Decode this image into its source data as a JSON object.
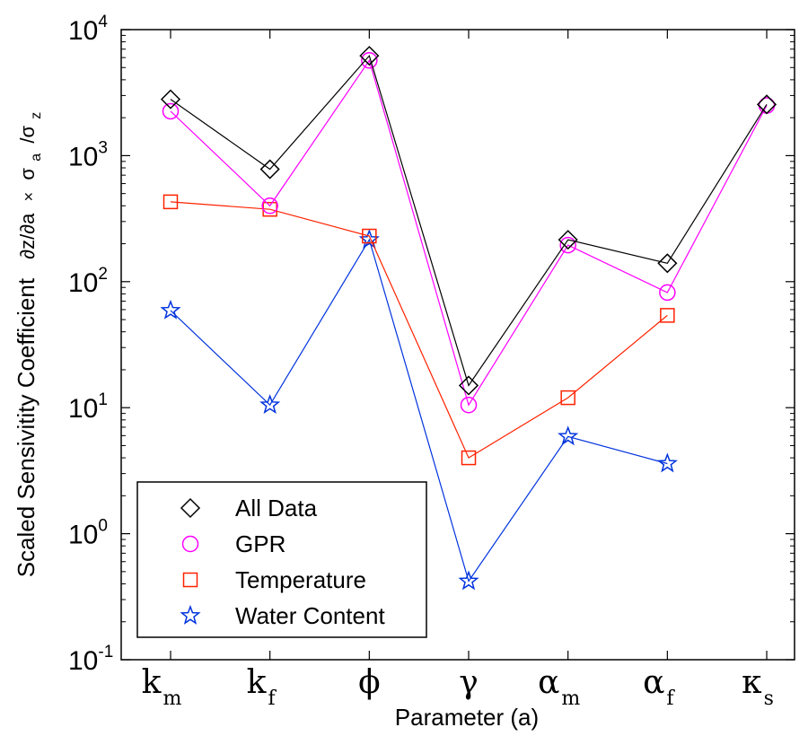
{
  "chart_data": {
    "type": "line",
    "xlabel": "Parameter (a)",
    "ylabel_text": "Scaled Sensivitity Coefficient",
    "ylabel_formula": {
      "d1": "∂z/∂a",
      "times": "×",
      "sigma": "σ",
      "sub_a": "a",
      "slash": "/σ",
      "sub_z": "z"
    },
    "yscale": "log",
    "ylim": [
      0.1,
      10000
    ],
    "yticks": [
      {
        "base": "10",
        "exp": "-1",
        "value": 0.1
      },
      {
        "base": "10",
        "exp": "0",
        "value": 1
      },
      {
        "base": "10",
        "exp": "1",
        "value": 10
      },
      {
        "base": "10",
        "exp": "2",
        "value": 100
      },
      {
        "base": "10",
        "exp": "3",
        "value": 1000
      },
      {
        "base": "10",
        "exp": "4",
        "value": 10000
      }
    ],
    "categories": [
      {
        "main": "k",
        "sub": "m"
      },
      {
        "main": "k",
        "sub": "f"
      },
      {
        "main": "ϕ",
        "sub": ""
      },
      {
        "main": "γ",
        "sub": ""
      },
      {
        "main": "α",
        "sub": "m"
      },
      {
        "main": "α",
        "sub": "f"
      },
      {
        "main": "κ",
        "sub": "s"
      }
    ],
    "legend_position": "lower-left",
    "series": [
      {
        "name": "All Data",
        "color": "#000000",
        "marker": "diamond",
        "values": [
          2800,
          780,
          6200,
          15,
          215,
          140,
          2550
        ]
      },
      {
        "name": "GPR",
        "color": "#ff00ff",
        "marker": "circle",
        "values": [
          2250,
          400,
          5700,
          10.5,
          195,
          82,
          2500
        ]
      },
      {
        "name": "Temperature",
        "color": "#ff2200",
        "marker": "square",
        "values": [
          430,
          375,
          230,
          4,
          12,
          54,
          null
        ]
      },
      {
        "name": "Water Content",
        "color": "#0033dd",
        "marker": "star",
        "values": [
          59,
          10.5,
          215,
          0.42,
          5.9,
          3.6,
          null
        ]
      }
    ]
  }
}
